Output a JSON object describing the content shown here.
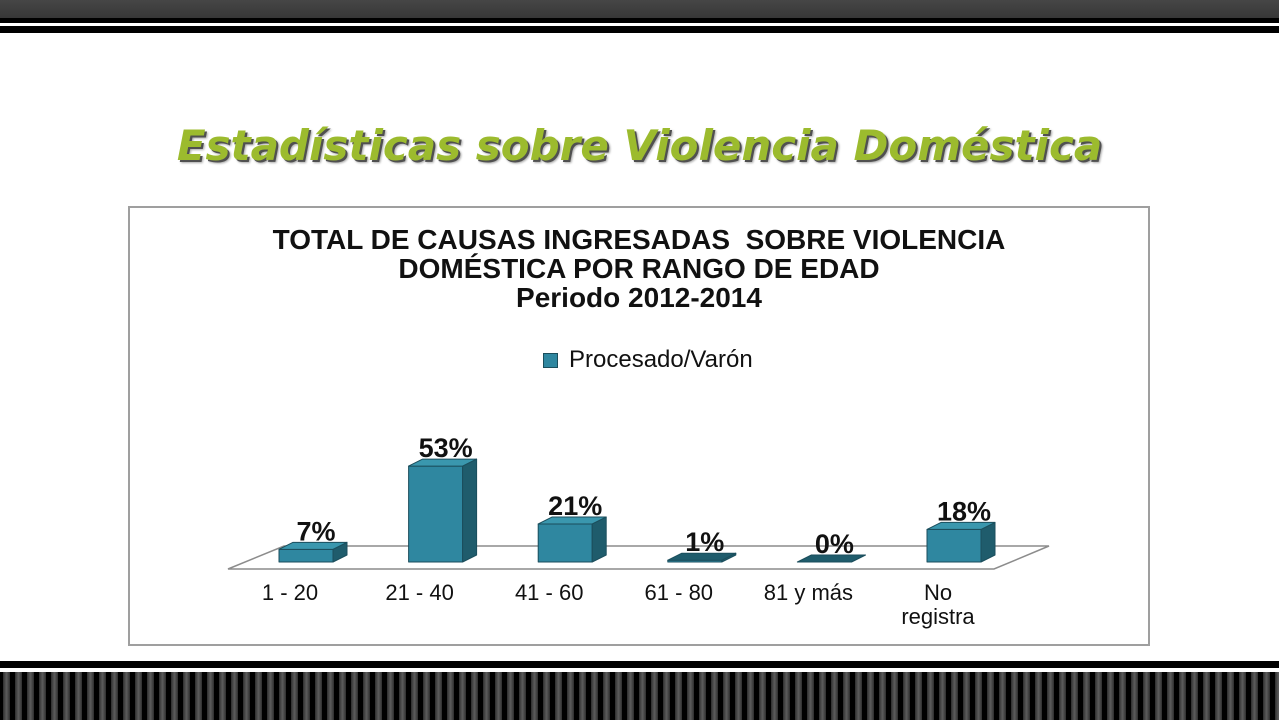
{
  "slide": {
    "title": "Estadísticas sobre Violencia Doméstica"
  },
  "colors": {
    "title": "#9cbb2e",
    "bar_front": "#2f87a0",
    "bar_side": "#1f5c6c",
    "bar_top": "#3a97ae",
    "bar_edge": "#1b4e5c"
  },
  "chart_data": {
    "type": "bar",
    "3d": true,
    "title_lines": [
      "TOTAL DE CAUSAS INGRESADAS  SOBRE VIOLENCIA",
      "DOMÉSTICA POR RANGO DE EDAD"
    ],
    "subtitle": "Periodo 2012-2014",
    "categories": [
      "1 - 20",
      "21 - 40",
      "41 - 60",
      "61 - 80",
      "81 y más",
      "No registra"
    ],
    "series": [
      {
        "name": "Procesado/Varón",
        "values": [
          7,
          53,
          21,
          1,
          0,
          18
        ]
      }
    ],
    "data_labels": [
      "7%",
      "53%",
      "21%",
      "1%",
      "0%",
      "18%"
    ],
    "xlabel": "",
    "ylabel": "",
    "grid": false,
    "legend": "top"
  }
}
